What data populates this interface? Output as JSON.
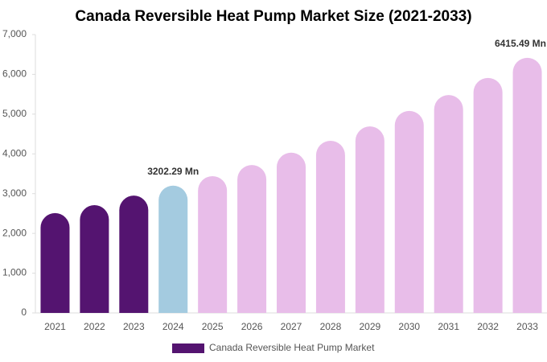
{
  "chart_data": {
    "type": "bar",
    "title": "Canada Reversible Heat Pump Market Size (2021-2033)",
    "categories": [
      "2021",
      "2022",
      "2023",
      "2024",
      "2025",
      "2026",
      "2027",
      "2028",
      "2029",
      "2030",
      "2031",
      "2032",
      "2033"
    ],
    "series": [
      {
        "name": "Canada Reversible Heat Pump Market",
        "color": "#541470",
        "values": [
          2510,
          2710,
          2950,
          3202.29,
          3440,
          3720,
          4030,
          4330,
          4690,
          5080,
          5480,
          5910,
          6415.49
        ],
        "value_labels": [
          null,
          null,
          null,
          "3202.29 Mn",
          null,
          null,
          null,
          null,
          null,
          null,
          null,
          null,
          "6415.49 Mn"
        ],
        "colors": [
          "#541470",
          "#541470",
          "#541470",
          "#a4cbe0",
          "#e8bde9",
          "#e8bde9",
          "#e8bde9",
          "#e8bde9",
          "#e8bde9",
          "#e8bde9",
          "#e8bde9",
          "#e8bde9",
          "#e8bde9"
        ]
      }
    ],
    "ylim": [
      0,
      7000
    ],
    "yticks": [
      0,
      {
        "value": 1000,
        "label": "1,000"
      },
      {
        "value": 2000,
        "label": "2,000"
      },
      {
        "value": 3000,
        "label": "3,000"
      },
      {
        "value": 4000,
        "label": "4,000"
      },
      {
        "value": 5000,
        "label": "5,000"
      },
      {
        "value": 6000,
        "label": "6,000"
      },
      {
        "value": 7000,
        "label": "7,000"
      }
    ],
    "grid": false
  }
}
